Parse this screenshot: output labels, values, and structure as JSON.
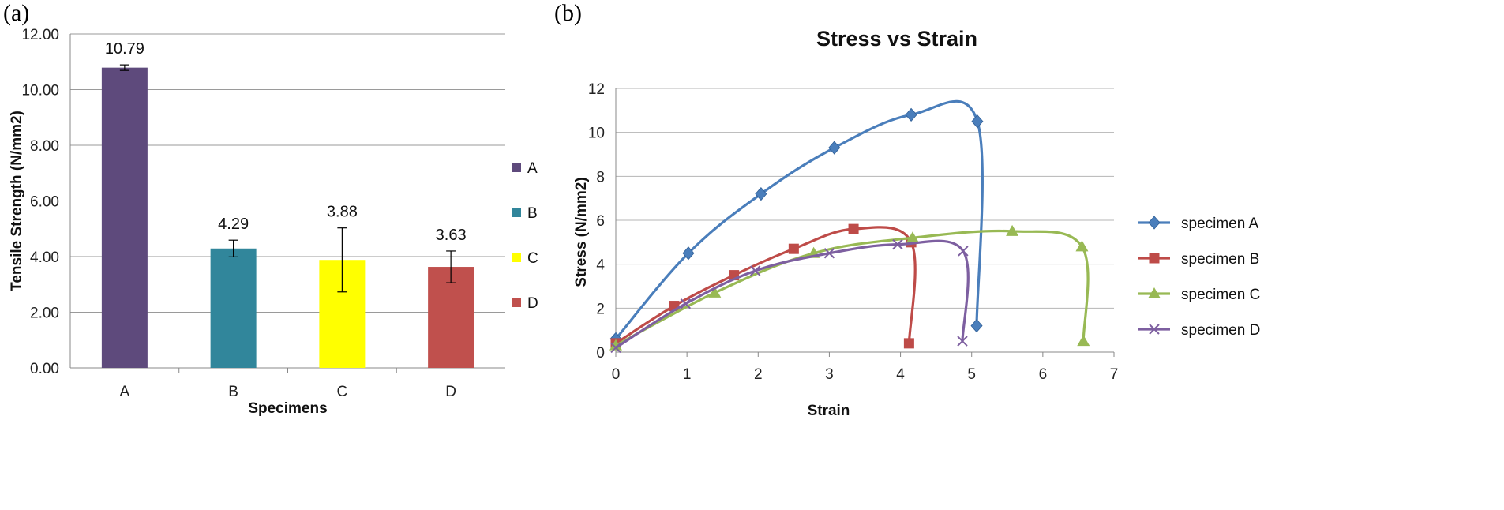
{
  "panels": {
    "a": "(a)",
    "b": "(b)"
  },
  "chart_data": [
    {
      "type": "bar",
      "panel": "(a)",
      "title": "",
      "categories": [
        "A",
        "B",
        "C",
        "D"
      ],
      "values": [
        10.79,
        4.29,
        3.88,
        3.63
      ],
      "value_labels": [
        "10.79",
        "4.29",
        "3.88",
        "3.63"
      ],
      "errors": [
        0.1,
        0.3,
        1.15,
        0.57
      ],
      "colors": [
        "#5e4a7c",
        "#31869b",
        "#ffff00",
        "#c0504d"
      ],
      "xlabel": "Specimens",
      "ylabel": "Tensile Strength (N/mm2)",
      "ylim": [
        0,
        12
      ],
      "yticks": [
        "0.00",
        "2.00",
        "4.00",
        "6.00",
        "8.00",
        "10.00",
        "12.00"
      ],
      "legend": [
        "A",
        "B",
        "C",
        "D"
      ],
      "legend_position": "right",
      "grid": true
    },
    {
      "type": "line",
      "panel": "(b)",
      "title": "Stress vs Strain",
      "xlabel": "Strain",
      "ylabel": "Stress (N/mm2)",
      "xlim": [
        0,
        7
      ],
      "ylim": [
        0,
        12
      ],
      "xticks": [
        "0",
        "1",
        "2",
        "3",
        "4",
        "5",
        "6",
        "7"
      ],
      "yticks": [
        "0",
        "2",
        "4",
        "6",
        "8",
        "10",
        "12"
      ],
      "legend_position": "right",
      "grid": true,
      "series": [
        {
          "name": "specimen A",
          "color": "#4a7ebb",
          "marker": "diamond",
          "x": [
            0,
            1.02,
            2.04,
            3.07,
            4.15,
            5.08,
            5.07
          ],
          "y": [
            0.6,
            4.5,
            7.2,
            9.3,
            10.8,
            10.5,
            1.2
          ]
        },
        {
          "name": "specimen B",
          "color": "#be4b48",
          "marker": "square",
          "x": [
            0,
            0.82,
            1.66,
            2.5,
            3.34,
            4.15,
            4.12
          ],
          "y": [
            0.4,
            2.1,
            3.5,
            4.7,
            5.6,
            5.0,
            0.4
          ]
        },
        {
          "name": "specimen C",
          "color": "#98b954",
          "marker": "triangle",
          "x": [
            0,
            1.39,
            2.78,
            4.17,
            5.57,
            6.55,
            6.57
          ],
          "y": [
            0.3,
            2.7,
            4.5,
            5.2,
            5.5,
            4.8,
            0.5
          ]
        },
        {
          "name": "specimen D",
          "color": "#7d5fa0",
          "marker": "x",
          "x": [
            0,
            0.98,
            1.96,
            3.0,
            3.96,
            4.88,
            4.87
          ],
          "y": [
            0.2,
            2.2,
            3.7,
            4.5,
            4.9,
            4.6,
            0.5
          ]
        }
      ]
    }
  ]
}
